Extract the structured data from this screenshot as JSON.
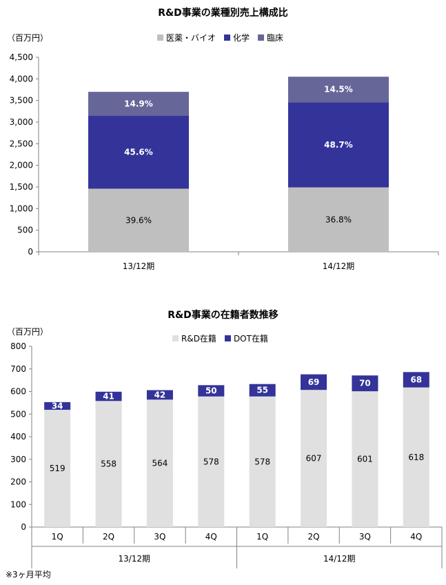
{
  "colors": {
    "grey_pharma": "#bfbfbf",
    "chemistry": "#333399",
    "clinical": "#666699",
    "rd_stock": "#e0e0e0",
    "dot_stock": "#333399",
    "axis": "#808080"
  },
  "chart1": {
    "title": "R&D事業の業種別売上構成比",
    "unit": "（百万円）",
    "legend": [
      "医薬・バイオ",
      "化学",
      "臨床"
    ]
  },
  "chart2": {
    "title": "R&D事業の在籍者数推移",
    "unit": "（百万円）",
    "legend": [
      "R&D在籍",
      "DOT在籍"
    ]
  },
  "footnote": "※3ヶ月平均",
  "chart_data": [
    {
      "type": "bar",
      "stacked": true,
      "title": "R&D事業の業種別売上構成比",
      "ylabel": "（百万円）",
      "categories": [
        "13/12期",
        "14/12期"
      ],
      "ylim": [
        0,
        4500
      ],
      "yticks": [
        "0",
        "500",
        "1,000",
        "1,500",
        "2,000",
        "2,500",
        "3,000",
        "3,500",
        "4,000",
        "4,500"
      ],
      "series": [
        {
          "name": "医薬・バイオ",
          "values": [
            1460,
            1490
          ],
          "labels": [
            "39.6%",
            "36.8%"
          ]
        },
        {
          "name": "化学",
          "values": [
            1690,
            1970
          ],
          "labels": [
            "45.6%",
            "48.7%"
          ]
        },
        {
          "name": "臨床",
          "values": [
            550,
            590
          ],
          "labels": [
            "14.9%",
            "14.5%"
          ]
        }
      ],
      "legend_position": "top"
    },
    {
      "type": "bar",
      "stacked": true,
      "title": "R&D事業の在籍者数推移",
      "ylabel": "（百万円）",
      "categories": [
        "1Q",
        "2Q",
        "3Q",
        "4Q",
        "1Q",
        "2Q",
        "3Q",
        "4Q"
      ],
      "groups": [
        "13/12期",
        "14/12期"
      ],
      "ylim": [
        0,
        800
      ],
      "yticks": [
        "0",
        "100",
        "200",
        "300",
        "400",
        "500",
        "600",
        "700",
        "800"
      ],
      "series": [
        {
          "name": "R&D在籍",
          "values": [
            519,
            558,
            564,
            578,
            578,
            607,
            601,
            618
          ]
        },
        {
          "name": "DOT在籍",
          "values": [
            34,
            41,
            42,
            50,
            55,
            69,
            70,
            68
          ]
        }
      ],
      "legend_position": "top"
    }
  ]
}
